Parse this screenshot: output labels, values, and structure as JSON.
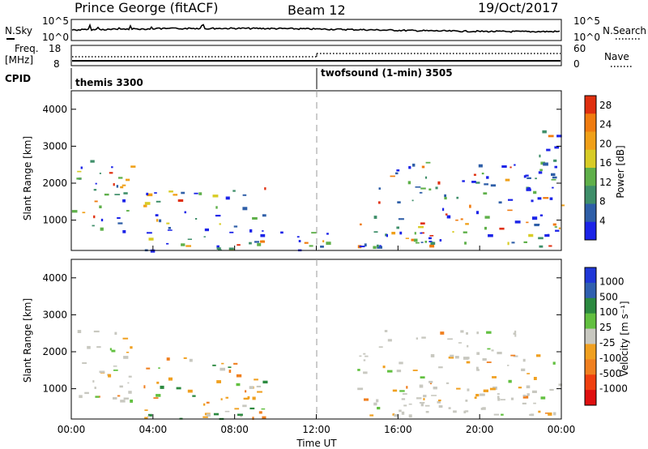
{
  "header": {
    "station": "Prince George (fitACF)",
    "beam": "Beam 12",
    "date": "19/Oct/2017"
  },
  "noise_panel": {
    "left_label": "N.Sky",
    "right_label": "N.Search",
    "left_ticks": [
      "10^5",
      "10^0"
    ],
    "right_ticks": [
      "10^5",
      "10^0"
    ]
  },
  "freq_panel": {
    "left_label_1": "Freq.",
    "left_label_2": "[MHz]",
    "right_label": "Nave",
    "left_ticks": [
      "18",
      "8"
    ],
    "right_ticks": [
      "60",
      "0"
    ]
  },
  "cpid": {
    "label": "CPID",
    "programs": [
      {
        "name": "themis 3300",
        "start_hour": 0
      },
      {
        "name": "twofsound (1-min) 3505",
        "start_hour": 12
      }
    ]
  },
  "x_axis": {
    "label": "Time UT",
    "ticks": [
      "00:00",
      "04:00",
      "08:00",
      "12:00",
      "16:00",
      "20:00",
      "00:00"
    ]
  },
  "power_panel": {
    "ylabel": "Slant Range [km]",
    "yticks": [
      "4000",
      "3000",
      "2000",
      "1000"
    ],
    "colorbar_label": "Power [dB]",
    "colorbar_ticks": [
      "28",
      "24",
      "20",
      "16",
      "12",
      "8",
      "4"
    ]
  },
  "velocity_panel": {
    "ylabel": "Slant Range [km]",
    "yticks": [
      "4000",
      "3000",
      "2000",
      "1000"
    ],
    "colorbar_label": "Velocity [m s⁻¹]",
    "colorbar_ticks": [
      "1000",
      "500",
      "100",
      "25",
      "-25",
      "-100",
      "-500",
      "-1000"
    ]
  },
  "chart_data": [
    {
      "type": "heatmap",
      "title": "Power",
      "xlabel": "Time UT",
      "ylabel": "Slant Range [km]",
      "xlim_hours": [
        0,
        24
      ],
      "ylim": [
        180,
        4500
      ],
      "colorbar": {
        "label": "Power [dB]",
        "range": [
          0,
          30
        ],
        "colors": [
          "#1c24e8",
          "#2f5fa8",
          "#3f8f6a",
          "#5fb04a",
          "#d8cc26",
          "#f0a018",
          "#f07c10",
          "#e03010"
        ]
      },
      "scatter_regions": [
        {
          "t_start": 0.0,
          "t_end": 3.0,
          "r_min": 700,
          "r_max": 2700,
          "peak_db": 24
        },
        {
          "t_start": 3.5,
          "t_end": 9.5,
          "r_min": 200,
          "r_max": 1900,
          "peak_db": 28
        },
        {
          "t_start": 9.0,
          "t_end": 13.0,
          "r_min": 200,
          "r_max": 700,
          "peak_db": 16
        },
        {
          "t_start": 14.0,
          "t_end": 24.0,
          "r_min": 300,
          "r_max": 2600,
          "peak_db": 24
        },
        {
          "t_start": 22.5,
          "t_end": 24.0,
          "r_min": 2500,
          "r_max": 3500,
          "peak_db": 12
        }
      ]
    },
    {
      "type": "heatmap",
      "title": "Velocity",
      "xlabel": "Time UT",
      "ylabel": "Slant Range [km]",
      "xlim_hours": [
        0,
        24
      ],
      "ylim": [
        180,
        4500
      ],
      "colorbar": {
        "label": "Velocity [m s⁻¹]",
        "boundaries": [
          1000,
          500,
          100,
          25,
          -25,
          -100,
          -500,
          -1000
        ],
        "colors": [
          "#2038d8",
          "#3060b0",
          "#2c8a40",
          "#62c040",
          "#c8c8c0",
          "#f0a020",
          "#f08020",
          "#f04010",
          "#e01010"
        ]
      },
      "scatter_regions": [
        {
          "t_start": 0.0,
          "t_end": 3.0,
          "r_min": 700,
          "r_max": 2700,
          "dominant": "ground scatter / -100"
        },
        {
          "t_start": 3.5,
          "t_end": 9.5,
          "r_min": 200,
          "r_max": 1900,
          "dominant": "-100"
        },
        {
          "t_start": 14.0,
          "t_end": 24.0,
          "r_min": 300,
          "r_max": 2600,
          "dominant": "ground scatter"
        }
      ]
    }
  ]
}
